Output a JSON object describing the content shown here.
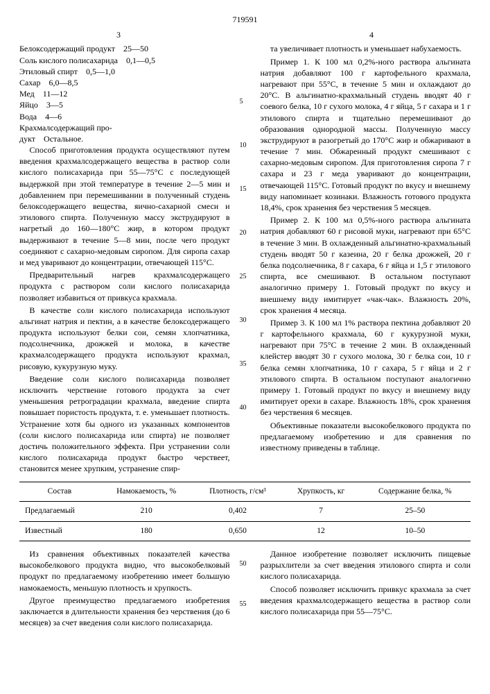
{
  "doc_number": "719591",
  "page_left": "3",
  "page_right": "4",
  "ingredients": [
    {
      "name": "Белоксодержащий продукт",
      "val": "25—50"
    },
    {
      "name": "Соль кислого полисахарида",
      "val": "0,1—0,5"
    },
    {
      "name": "Этиловый спирт",
      "val": "0,5—1,0"
    },
    {
      "name": "Сахар",
      "val": "6,0—8,5"
    },
    {
      "name": "Мед",
      "val": "11—12"
    },
    {
      "name": "Яйцо",
      "val": "3—5"
    },
    {
      "name": "Вода",
      "val": "4—6"
    },
    {
      "name": "Крахмалсодержащий про-",
      "val": ""
    },
    {
      "name": "дукт",
      "val": "Остальное."
    }
  ],
  "left_paras": [
    "Способ приготовления продукта осуществляют путем введения крахмалсодержащего вещества в раствор соли кислого полисахарида при 55—75°C с последующей выдержкой при этой температуре в течение 2—5 мин и добавлением при перемешивании в полученный студень белоксодержащего вещества, яично-сахарной смеси и этилового спирта. Полученную массу экструдируют в нагретый до 160—180°C жир, в котором продукт выдерживают в течение 5—8 мин, после чего продукт соединяют с сахарно-медовым сиропом. Для сиропа сахар и мед уваривают до концентрации, отвечающей 115°C.",
    "Предварительный нагрев крахмалсодержащего продукта с раствором соли кислого полисахарида позволяет избавиться от привкуса крахмала.",
    "В качестве соли кислого полисахарида используют альгинат натрия и пектин, а в качестве белоксодержащего продукта используют белки сои, семян хлопчатника, подсолнечника, дрожжей и молока, в качестве крахмалсодержащего продукта используют крахмал, рисовую, кукурузную муку.",
    "Введение соли кислого полисахарида позволяет исключить черствение готового продукта за счет уменьшения ретроградации крахмала, введение спирта повышает пористость продукта, т. е. уменьшает плотность. Устранение хотя бы одного из указанных компонентов (соли кислого полисахарида или спирта) не позволяет достичь положительного эффекта. При устранении соли кислого полисахарида продукт быстро черствеет, становится менее хрупким, устранение спир-"
  ],
  "right_paras": [
    "та увеличивает плотность и уменьшает набухаемость.",
    "Пример 1. К 100 мл 0,2%-ного раствора альгината натрия добавляют 100 г картофельного крахмала, нагревают при 55°C, в течение 5 мин и охлаждают до 20°C. В альгинатно-крахмальный студень вводят 40 г соевого белка, 10 г сухого молока, 4 г яйца, 5 г сахара и 1 г этилового спирта и тщательно перемешивают до образования однородной массы. Полученную массу экструдируют в разогретый до 170°C жир и обжаривают в течение 7 мин. Обжаренный продукт смешивают с сахарно-медовым сиропом. Для приготовления сиропа 7 г сахара и 23 г меда уваривают до концентрации, отвечающей 115°C. Готовый продукт по вкусу и внешнему виду напоминает козинаки. Влажность готового продукта 18,4%, срок хранения без черствения 5 месяцев.",
    "Пример 2. К 100 мл 0,5%-ного раствора альгината натрия добавляют 60 г рисовой муки, нагревают при 65°C в течение 3 мин. В охлажденный альгинатно-крахмальный студень вводят 50 г казеина, 20 г белка дрожжей, 20 г белка подсолнечника, 8 г сахара, 6 г яйца и 1,5 г этилового спирта, все смешивают. В остальном поступают аналогично примеру 1. Готовый продукт по вкусу и внешнему виду имитирует «чак-чак». Влажность 20%, срок хранения 4 месяца.",
    "Пример 3. К 100 мл 1% раствора пектина добавляют 20 г картофельного крахмала, 60 г кукурузной муки, нагревают при 75°C в течение 2 мин. В охлажденный клейстер вводят 30 г сухого молока, 30 г белка сои, 10 г белка семян хлопчатника, 10 г сахара, 5 г яйца и 2 г этилового спирта. В остальном поступают аналогично примеру 1. Готовый продукт по вкусу и внешнему виду имитирует орехи в сахаре. Влажность 18%, срок хранения без черствения 6 месяцев.",
    "Объективные показатели высокобелкового продукта по предлагаемому изобретению и для сравнения по известному приведены в таблице."
  ],
  "line_numbers": [
    "5",
    "10",
    "15",
    "20",
    "25",
    "30",
    "35",
    "40"
  ],
  "table": {
    "headers": [
      "Состав",
      "Намокаемость, %",
      "Плотность, г/см³",
      "Хрупкость, кг",
      "Содержание белка, %"
    ],
    "rows": [
      [
        "Предлагаемый",
        "210",
        "0,402",
        "7",
        "25–50"
      ],
      [
        "Известный",
        "180",
        "0,650",
        "12",
        "10–50"
      ]
    ]
  },
  "lower_left": [
    "Из сравнения объективных показателей качества высокобелкового продукта видно, что высокобелковый продукт по предлагаемому изобретению имеет большую намокаемость, меньшую плотность и хрупкость.",
    "Другое преимущество предлагаемого изобретения заключается в длительности хранения без черствения (до 6 месяцев) за счет введения соли кислого полисахарида."
  ],
  "lower_right": [
    "Данное изобретение позволяет исключить пищевые разрыхлители за счет введения этилового спирта и соли кислого полисахарида.",
    "Способ позволяет исключить привкус крахмала за счет введения крахмалсодержащего вещества в раствор соли кислого полисахарида при 55—75°C."
  ],
  "lower_line_nums": [
    "50",
    "55"
  ]
}
